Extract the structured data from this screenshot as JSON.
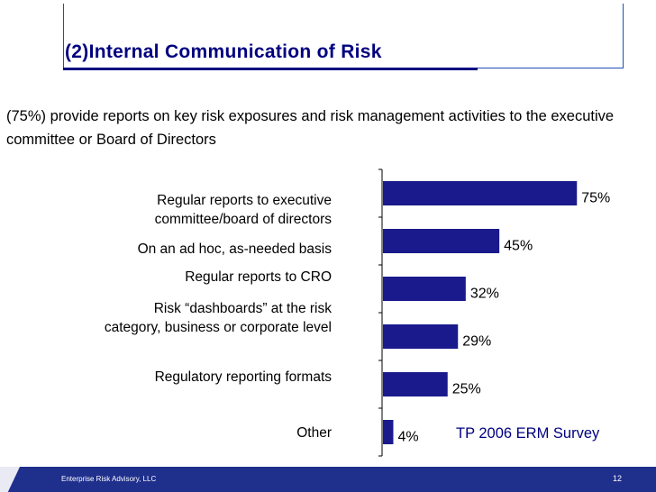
{
  "slide": {
    "title": "(2)Internal Communication of Risk",
    "intro": "(75%) provide reports on key risk exposures and risk management activities to the executive committee or Board of Directors",
    "source": "TP 2006 ERM Survey",
    "footer_left": "Enterprise Risk Advisory, LLC",
    "page_number": "12"
  },
  "colors": {
    "bar": "#1a1a8c",
    "title": "#000080",
    "footer": "#1f2f8c"
  },
  "chart_data": {
    "type": "bar",
    "orientation": "horizontal",
    "categories": [
      "Regular reports to executive committee/board of directors",
      "On an ad hoc, as-needed basis",
      "Regular reports to CRO",
      "Risk “dashboards” at the risk category, business or corporate level",
      "Regulatory reporting formats",
      "Other"
    ],
    "values": [
      75,
      45,
      32,
      29,
      25,
      4
    ],
    "value_labels": [
      "75%",
      "45%",
      "32%",
      "29%",
      "25%",
      "4%"
    ],
    "xlim": [
      0,
      100
    ],
    "grid": false,
    "legend": "none"
  }
}
